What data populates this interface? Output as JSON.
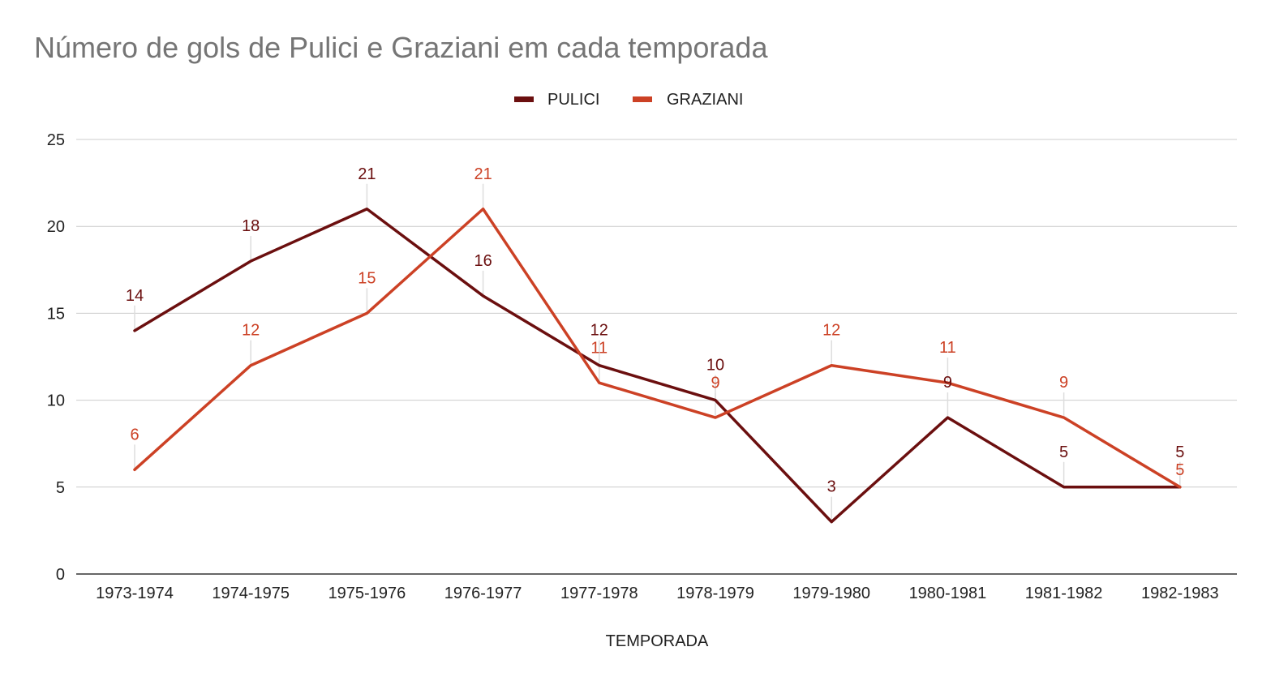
{
  "chart_data": {
    "type": "line",
    "title": "Número de gols de Pulici e Graziani em cada temporada",
    "xlabel": "TEMPORADA",
    "ylabel": "",
    "categories": [
      "1973-1974",
      "1974-1975",
      "1975-1976",
      "1976-1977",
      "1977-1978",
      "1978-1979",
      "1979-1980",
      "1980-1981",
      "1981-1982",
      "1982-1983"
    ],
    "series": [
      {
        "name": "PULICI",
        "color": "#6b0f0f",
        "values": [
          14,
          18,
          21,
          16,
          12,
          10,
          3,
          9,
          5,
          5
        ]
      },
      {
        "name": "GRAZIANI",
        "color": "#cc4125",
        "values": [
          6,
          12,
          15,
          21,
          11,
          9,
          12,
          11,
          9,
          5
        ]
      }
    ],
    "ylim": [
      0,
      25
    ],
    "yticks": [
      0,
      5,
      10,
      15,
      20,
      25
    ],
    "grid": true,
    "legend": "top-center",
    "data_labels": true,
    "colors": {
      "title": "#757575",
      "axis_text": "#222222",
      "grid": "#cccccc",
      "axis_line": "#333333"
    }
  }
}
